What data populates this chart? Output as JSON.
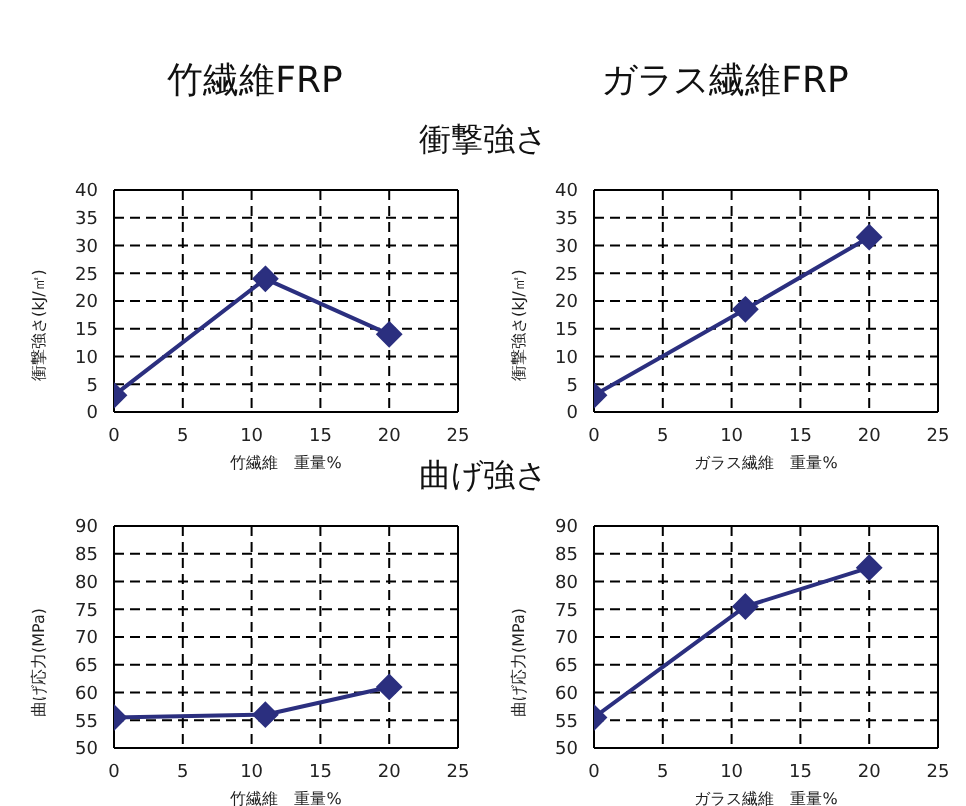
{
  "chart_data": [
    {
      "type": "line",
      "title": "竹繊維FRP",
      "subtitle": "衝撃強さ",
      "xlabel": "竹繊維　重量%",
      "ylabel": "衝撃強さ(kJ/㎡)",
      "x": [
        0,
        11,
        20
      ],
      "series": [
        {
          "color": "#2b2f7f",
          "values": [
            3,
            24,
            14
          ]
        }
      ],
      "xlim": [
        0,
        25
      ],
      "xticks": [
        0,
        5,
        10,
        15,
        20,
        25
      ],
      "ylim": [
        0,
        40
      ],
      "yticks": [
        0,
        5,
        10,
        15,
        20,
        25,
        30,
        35,
        40
      ],
      "grid": true,
      "marker": "diamond",
      "line_style": "solid",
      "legend": false
    },
    {
      "type": "line",
      "title": "ガラス繊維FRP",
      "xlabel": "ガラス繊維　重量%",
      "ylabel": "衝撃強さ(kJ/㎡)",
      "x": [
        0,
        11,
        20
      ],
      "series": [
        {
          "color": "#2b2f7f",
          "values": [
            3,
            18.5,
            31.5
          ]
        }
      ],
      "xlim": [
        0,
        25
      ],
      "xticks": [
        0,
        5,
        10,
        15,
        20,
        25
      ],
      "ylim": [
        0,
        40
      ],
      "yticks": [
        0,
        5,
        10,
        15,
        20,
        25,
        30,
        35,
        40
      ],
      "grid": true,
      "marker": "diamond",
      "line_style": "solid",
      "legend": false
    },
    {
      "type": "line",
      "subtitle": "曲げ強さ",
      "xlabel": "竹繊維　重量%",
      "ylabel": "曲げ応力(MPa)",
      "x": [
        0,
        11,
        20
      ],
      "series": [
        {
          "color": "#2b2f7f",
          "values": [
            55.5,
            56,
            61
          ]
        }
      ],
      "xlim": [
        0,
        25
      ],
      "xticks": [
        0,
        5,
        10,
        15,
        20,
        25
      ],
      "ylim": [
        50,
        90
      ],
      "yticks": [
        50,
        55,
        60,
        65,
        70,
        75,
        80,
        85,
        90
      ],
      "grid": true,
      "marker": "diamond",
      "line_style": "solid",
      "legend": false
    },
    {
      "type": "line",
      "xlabel": "ガラス繊維　重量%",
      "ylabel": "曲げ応力(MPa)",
      "x": [
        0,
        11,
        20
      ],
      "series": [
        {
          "color": "#2b2f7f",
          "values": [
            55.5,
            75.5,
            82.5
          ]
        }
      ],
      "xlim": [
        0,
        25
      ],
      "xticks": [
        0,
        5,
        10,
        15,
        20,
        25
      ],
      "ylim": [
        50,
        90
      ],
      "yticks": [
        50,
        55,
        60,
        65,
        70,
        75,
        80,
        85,
        90
      ],
      "grid": true,
      "marker": "diamond",
      "line_style": "solid",
      "legend": false
    }
  ]
}
